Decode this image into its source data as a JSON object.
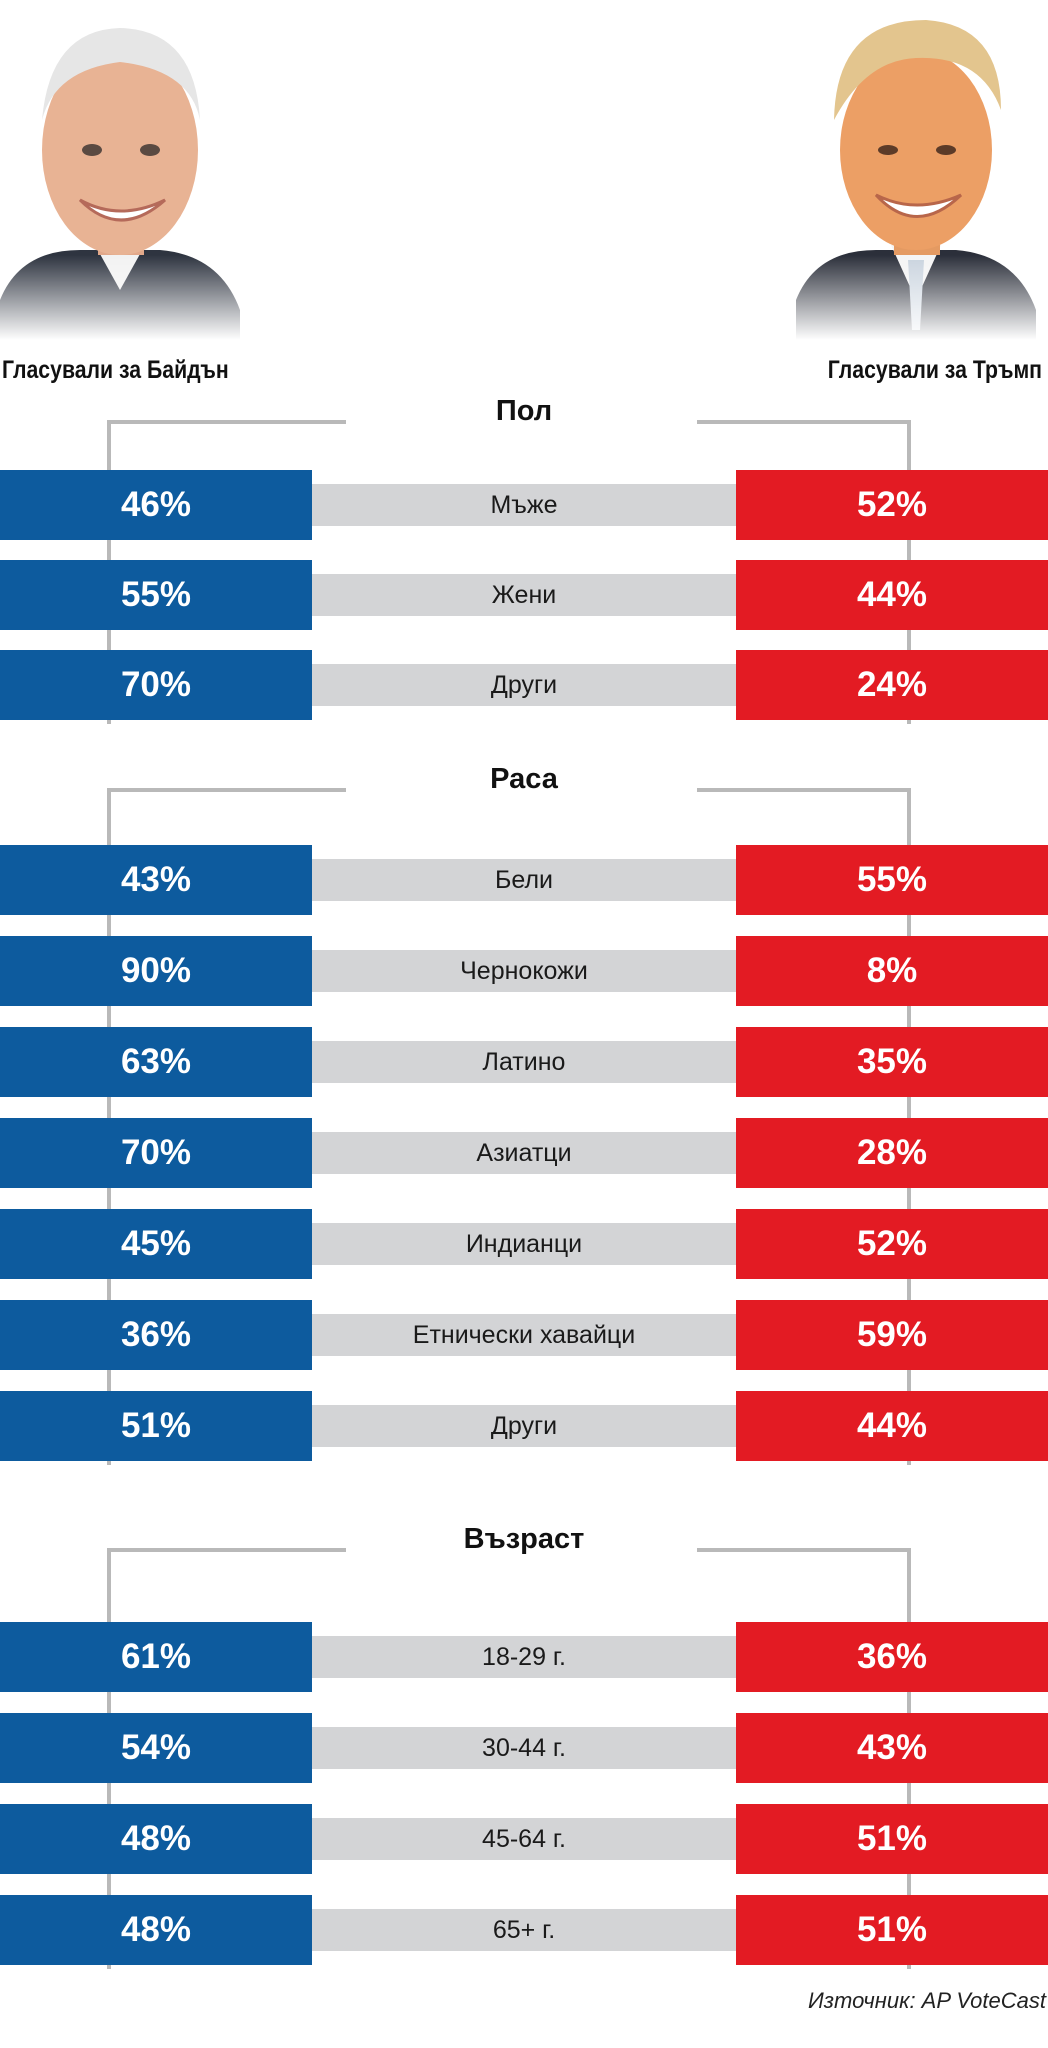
{
  "candidates": {
    "left_label": "Гласували за Байдън",
    "right_label": "Гласували за Тръмп",
    "left_color": "#0d5b9e",
    "right_color": "#e31b23"
  },
  "source": "Източник: AP VoteCast",
  "chart_data": {
    "type": "table",
    "series": [
      {
        "name": "Гласували за Байдън"
      },
      {
        "name": "Гласували за Тръмп"
      }
    ],
    "sections": [
      {
        "title": "Пол",
        "rows": [
          {
            "category": "Мъже",
            "biden": "46%",
            "trump": "52%"
          },
          {
            "category": "Жени",
            "biden": "55%",
            "trump": "44%"
          },
          {
            "category": "Други",
            "biden": "70%",
            "trump": "24%"
          }
        ]
      },
      {
        "title": "Раса",
        "rows": [
          {
            "category": "Бели",
            "biden": "43%",
            "trump": "55%"
          },
          {
            "category": "Чернокожи",
            "biden": "90%",
            "trump": "8%"
          },
          {
            "category": "Латино",
            "biden": "63%",
            "trump": "35%"
          },
          {
            "category": "Азиатци",
            "biden": "70%",
            "trump": "28%"
          },
          {
            "category": "Индианци",
            "biden": "45%",
            "trump": "52%"
          },
          {
            "category": "Етнически хавайци",
            "biden": "36%",
            "trump": "59%"
          },
          {
            "category": "Други",
            "biden": "51%",
            "trump": "44%"
          }
        ]
      },
      {
        "title": "Възраст",
        "rows": [
          {
            "category": "18-29 г.",
            "biden": "61%",
            "trump": "36%"
          },
          {
            "category": "30-44 г.",
            "biden": "54%",
            "trump": "43%"
          },
          {
            "category": "45-64 г.",
            "biden": "48%",
            "trump": "51%"
          },
          {
            "category": "65+ г.",
            "biden": "48%",
            "trump": "51%"
          }
        ]
      }
    ]
  }
}
